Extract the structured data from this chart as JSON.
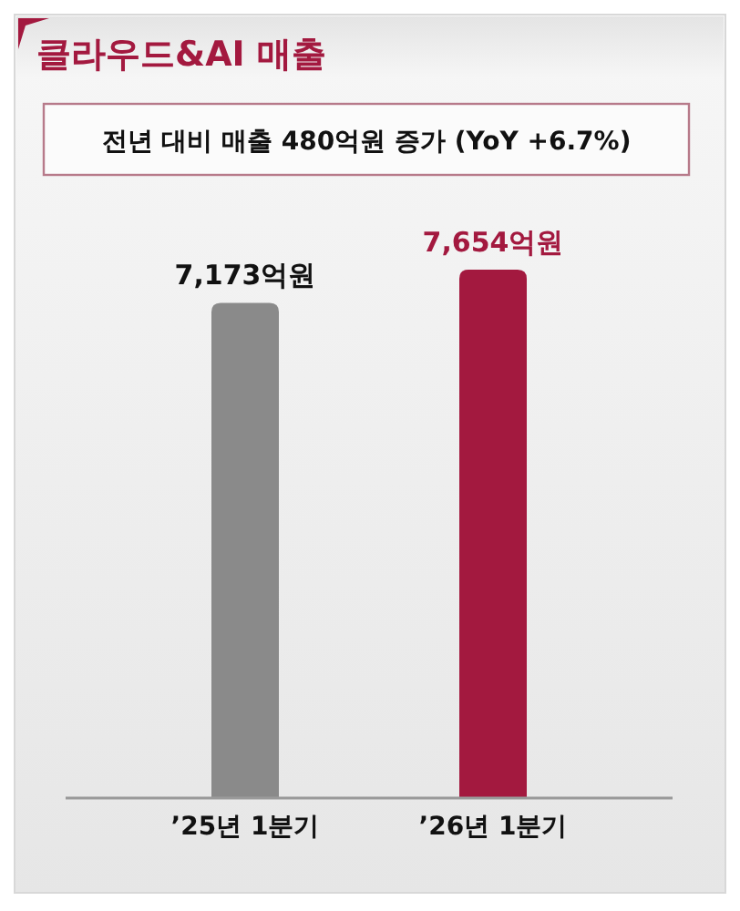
{
  "chart_data": {
    "type": "bar",
    "title": "클라우드&AI 매출",
    "subtitle": "전년 대비 매출 480억원 증가 (YoY +6.7%)",
    "categories": [
      "’25년 1분기",
      "’26년 1분기"
    ],
    "values": [
      7173,
      7654
    ],
    "colors": [
      "#8a8a8a",
      "#a3193f"
    ],
    "value_labels": [
      "7,173억원",
      "7,654억원"
    ]
  }
}
